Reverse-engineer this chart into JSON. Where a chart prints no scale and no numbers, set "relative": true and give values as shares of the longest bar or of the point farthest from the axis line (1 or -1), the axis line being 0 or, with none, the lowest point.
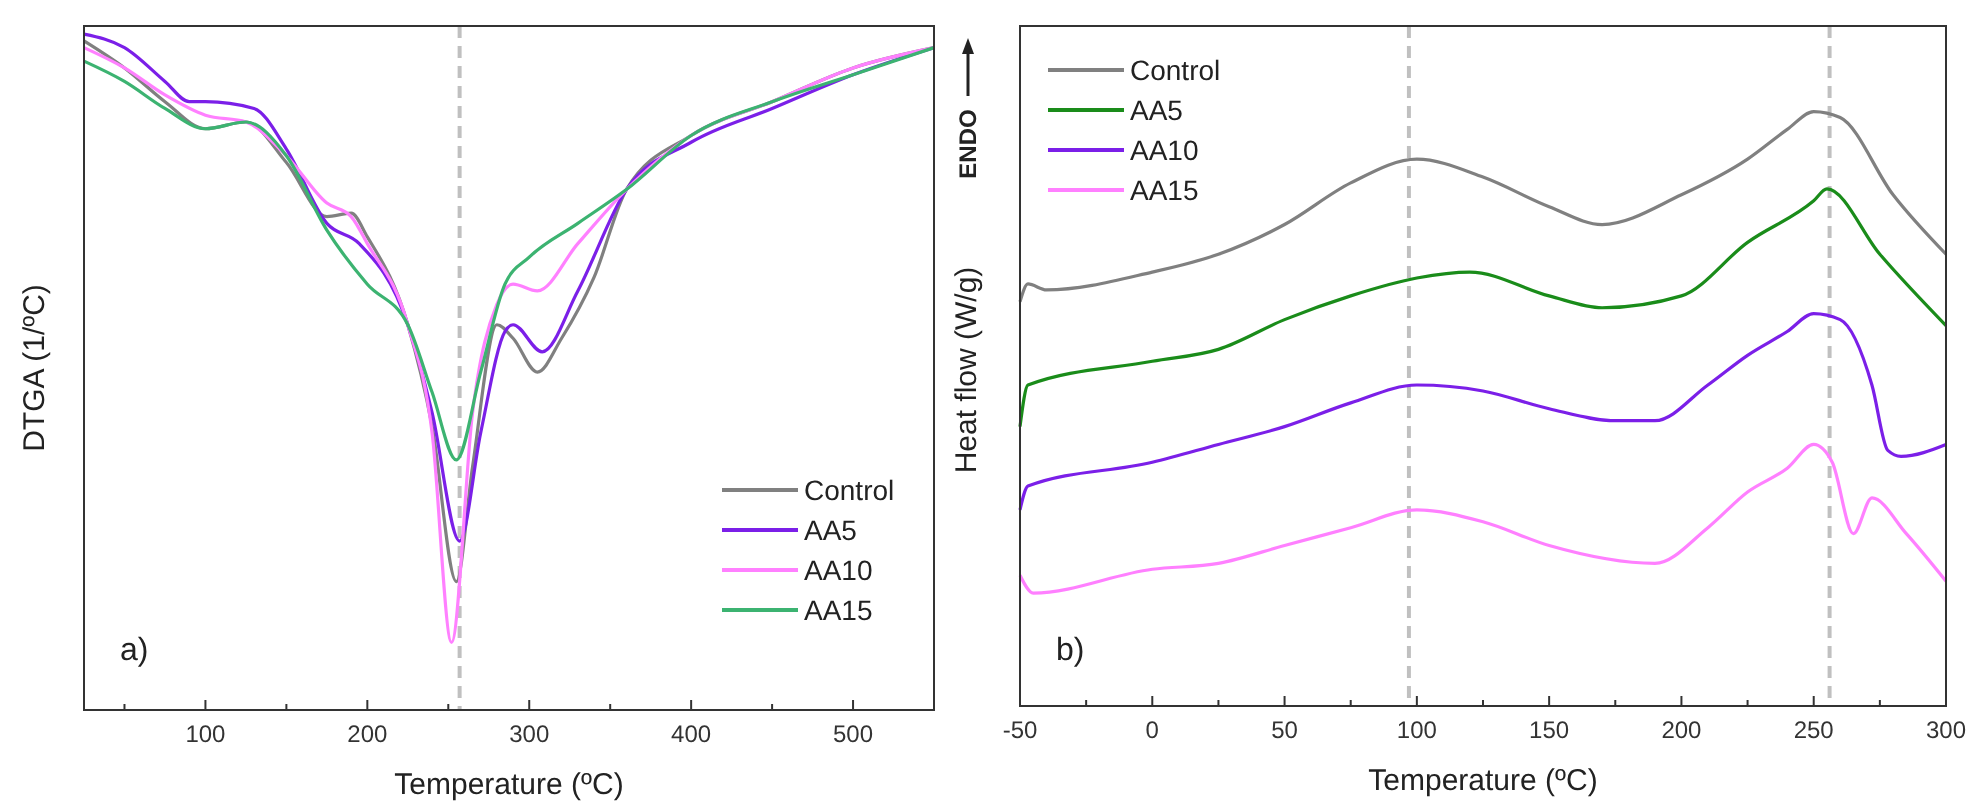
{
  "chart_data": [
    {
      "type": "line",
      "relative": true,
      "xlabel": "Temperature (ºC)",
      "ylabel": "DTGA (1/ºC)",
      "annotations": [
        "a)"
      ],
      "xlim": [
        25,
        550
      ],
      "xticks": [
        {
          "value": 50,
          "label": null
        },
        100,
        {
          "value": 150,
          "label": null
        },
        200,
        {
          "value": 250,
          "label": null
        },
        300,
        {
          "value": 350,
          "label": null
        },
        400,
        {
          "value": 450,
          "label": null
        },
        500
      ],
      "legend": "bottom right",
      "grid": false,
      "ref_lines": [
        {
          "axis": "x",
          "value": 257,
          "color": "#c0c0c0",
          "line_style": "dashed"
        }
      ],
      "series": [
        {
          "name": "Control",
          "color": "#808080",
          "x": [
            25,
            50,
            75,
            100,
            125,
            150,
            175,
            190,
            200,
            225,
            240,
            255,
            265,
            280,
            290,
            305,
            320,
            340,
            360,
            400,
            450,
            500,
            550
          ],
          "values": [
            0.99,
            0.95,
            0.9,
            0.86,
            0.87,
            0.81,
            0.73,
            0.735,
            0.7,
            0.57,
            0.42,
            0.19,
            0.36,
            0.57,
            0.55,
            0.5,
            0.55,
            0.64,
            0.77,
            0.85,
            0.9,
            0.95,
            0.98
          ]
        },
        {
          "name": "AA5",
          "color": "#7b1fe8",
          "x": [
            25,
            50,
            75,
            90,
            100,
            130,
            150,
            175,
            195,
            225,
            240,
            257,
            270,
            285,
            290,
            308,
            330,
            360,
            400,
            450,
            500,
            550
          ],
          "values": [
            1.0,
            0.98,
            0.93,
            0.9,
            0.9,
            0.89,
            0.83,
            0.72,
            0.69,
            0.57,
            0.44,
            0.25,
            0.41,
            0.56,
            0.57,
            0.53,
            0.62,
            0.77,
            0.84,
            0.89,
            0.94,
            0.98
          ]
        },
        {
          "name": "AA10",
          "color": "#ff80ff",
          "x": [
            25,
            50,
            75,
            100,
            125,
            150,
            175,
            190,
            200,
            225,
            240,
            252,
            265,
            280,
            290,
            305,
            330,
            360,
            400,
            450,
            500,
            550
          ],
          "values": [
            0.98,
            0.95,
            0.91,
            0.88,
            0.87,
            0.82,
            0.75,
            0.73,
            0.69,
            0.57,
            0.41,
            0.1,
            0.44,
            0.6,
            0.63,
            0.62,
            0.69,
            0.77,
            0.85,
            0.9,
            0.95,
            0.98
          ]
        },
        {
          "name": "AA15",
          "color": "#3cb371",
          "x": [
            25,
            50,
            75,
            100,
            125,
            150,
            175,
            200,
            225,
            240,
            255,
            270,
            285,
            300,
            330,
            360,
            400,
            450,
            500,
            550
          ],
          "values": [
            0.96,
            0.93,
            0.89,
            0.86,
            0.87,
            0.82,
            0.71,
            0.63,
            0.57,
            0.47,
            0.37,
            0.5,
            0.63,
            0.67,
            0.72,
            0.77,
            0.85,
            0.9,
            0.94,
            0.98
          ]
        }
      ]
    },
    {
      "type": "line",
      "relative": true,
      "xlabel": "Temperature (ºC)",
      "ylabel": "Heat flow (W/g)",
      "annotations": [
        "b)",
        "ENDO"
      ],
      "xlim": [
        -50,
        300
      ],
      "xticks": [
        -50,
        {
          "value": -25,
          "label": null
        },
        0,
        {
          "value": 25,
          "label": null
        },
        50,
        {
          "value": 75,
          "label": null
        },
        100,
        {
          "value": 125,
          "label": null
        },
        150,
        {
          "value": 175,
          "label": null
        },
        200,
        {
          "value": 225,
          "label": null
        },
        250,
        {
          "value": 275,
          "label": null
        },
        300
      ],
      "legend": "top left",
      "grid": false,
      "ref_lines": [
        {
          "axis": "x",
          "value": 97,
          "color": "#c0c0c0",
          "line_style": "dashed"
        },
        {
          "axis": "x",
          "value": 256,
          "color": "#c0c0c0",
          "line_style": "dashed"
        }
      ],
      "series": [
        {
          "name": "Control",
          "color": "#808080",
          "x": [
            -50,
            -47,
            -40,
            0,
            25,
            50,
            75,
            100,
            125,
            150,
            170,
            200,
            225,
            240,
            250,
            260,
            280,
            300
          ],
          "values": [
            0.68,
            0.71,
            0.7,
            0.73,
            0.76,
            0.81,
            0.88,
            0.92,
            0.89,
            0.84,
            0.81,
            0.86,
            0.92,
            0.97,
            1.0,
            0.99,
            0.86,
            0.76
          ]
        },
        {
          "name": "AA5",
          "color": "#1a8c1a",
          "x": [
            -50,
            -47,
            0,
            25,
            50,
            75,
            100,
            120,
            150,
            170,
            200,
            225,
            250,
            255,
            275,
            300
          ],
          "values": [
            0.47,
            0.54,
            0.58,
            0.6,
            0.65,
            0.69,
            0.72,
            0.73,
            0.69,
            0.67,
            0.69,
            0.78,
            0.85,
            0.87,
            0.76,
            0.64
          ]
        },
        {
          "name": "AA10",
          "color": "#7b1fe8",
          "x": [
            -50,
            -47,
            0,
            25,
            50,
            75,
            100,
            125,
            150,
            175,
            190,
            210,
            225,
            240,
            250,
            260,
            272,
            278,
            283,
            300
          ],
          "values": [
            0.33,
            0.37,
            0.41,
            0.44,
            0.47,
            0.51,
            0.54,
            0.53,
            0.5,
            0.48,
            0.48,
            0.54,
            0.59,
            0.63,
            0.66,
            0.65,
            0.54,
            0.43,
            0.42,
            0.44
          ]
        },
        {
          "name": "AA15",
          "color": "#ff80ff",
          "x": [
            -50,
            -45,
            0,
            25,
            50,
            75,
            100,
            125,
            150,
            190,
            210,
            225,
            240,
            250,
            257,
            265,
            272,
            285,
            300
          ],
          "values": [
            0.22,
            0.19,
            0.23,
            0.24,
            0.27,
            0.3,
            0.33,
            0.31,
            0.27,
            0.24,
            0.3,
            0.36,
            0.4,
            0.44,
            0.41,
            0.29,
            0.35,
            0.29,
            0.21
          ]
        }
      ]
    }
  ]
}
